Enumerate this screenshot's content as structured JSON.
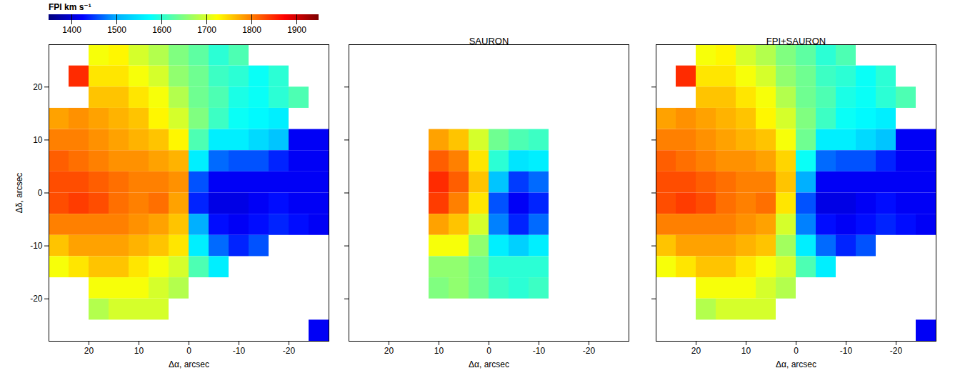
{
  "chart_data": [
    {
      "type": "heatmap",
      "xlabel": "Δα, arcsec",
      "ylabel": "Δδ, arcsec",
      "xlim": [
        28,
        -28
      ],
      "ylim": [
        -28,
        28
      ],
      "xticks": [
        20,
        10,
        0,
        -10,
        -20
      ],
      "yticks": [
        -20,
        -10,
        0,
        10,
        20
      ],
      "tick_labels": true,
      "colorbar": {
        "label": "FPI km s⁻¹",
        "range": [
          1350,
          1950
        ],
        "ticks": [
          1400,
          1500,
          1600,
          1700,
          1800,
          1900
        ]
      },
      "cell_width": 4,
      "x": [
        26,
        22,
        18,
        14,
        10,
        6,
        2,
        -2,
        -6,
        -10,
        -14,
        -18,
        -22,
        -26
      ],
      "y": [
        26,
        22,
        18,
        14,
        10,
        6,
        2,
        -2,
        -6,
        -10,
        -14,
        -18,
        -22,
        -26
      ],
      "values": [
        [
          null,
          null,
          1720,
          1730,
          1700,
          1680,
          1650,
          1630,
          1600,
          1620,
          null,
          null,
          null,
          null
        ],
        [
          null,
          1850,
          1740,
          1740,
          1720,
          1700,
          1660,
          1640,
          1610,
          1600,
          1580,
          1600,
          null,
          null
        ],
        [
          null,
          null,
          1760,
          1760,
          1740,
          1720,
          1680,
          1640,
          1620,
          1590,
          1580,
          1600,
          1620,
          null
        ],
        [
          1780,
          1790,
          1780,
          1770,
          1760,
          1730,
          1700,
          1650,
          1610,
          1580,
          1570,
          1560,
          null,
          null
        ],
        [
          1800,
          1800,
          1790,
          1780,
          1770,
          1760,
          1730,
          1620,
          1560,
          1560,
          1540,
          1520,
          1420,
          1420
        ],
        [
          1820,
          1810,
          1800,
          1790,
          1790,
          1780,
          1770,
          1560,
          1470,
          1460,
          1460,
          1440,
          1420,
          1420
        ],
        [
          1830,
          1830,
          1820,
          1810,
          1800,
          1800,
          1790,
          1460,
          1420,
          1420,
          1420,
          1420,
          1420,
          1420
        ],
        [
          1830,
          1840,
          1830,
          1810,
          1800,
          1810,
          1780,
          1440,
          1410,
          1410,
          1420,
          1430,
          1420,
          1420
        ],
        [
          1800,
          1800,
          1800,
          1800,
          1790,
          1780,
          1760,
          1500,
          1430,
          1420,
          1430,
          1440,
          1430,
          1420
        ],
        [
          1760,
          1780,
          1780,
          1780,
          1770,
          1760,
          1740,
          1560,
          1470,
          1440,
          1460,
          null,
          null,
          null
        ],
        [
          1720,
          1740,
          1760,
          1760,
          1740,
          1720,
          1700,
          1620,
          1560,
          null,
          null,
          null,
          null,
          null
        ],
        [
          null,
          null,
          1720,
          1720,
          1720,
          1700,
          1680,
          null,
          null,
          null,
          null,
          null,
          null,
          null
        ],
        [
          null,
          null,
          1680,
          1700,
          1700,
          1700,
          null,
          null,
          null,
          null,
          null,
          null,
          null,
          null
        ],
        [
          null,
          null,
          null,
          null,
          null,
          null,
          null,
          null,
          null,
          null,
          null,
          null,
          null,
          1420
        ]
      ]
    },
    {
      "type": "heatmap",
      "title": "SAURON",
      "xlabel": "Δα, arcsec",
      "xlim": [
        28,
        -28
      ],
      "ylim": [
        -28,
        28
      ],
      "xticks": [
        20,
        10,
        0,
        -10,
        -20
      ],
      "yticks": [
        -20,
        -10,
        0,
        10,
        20
      ],
      "tick_labels": "x",
      "cell_width": 4,
      "x": [
        26,
        22,
        18,
        14,
        10,
        6,
        2,
        -2,
        -6,
        -10,
        -14,
        -18,
        -22,
        -26
      ],
      "y": [
        26,
        22,
        18,
        14,
        10,
        6,
        2,
        -2,
        -6,
        -10,
        -14,
        -18,
        -22,
        -26
      ],
      "values": [
        [
          null,
          null,
          null,
          null,
          null,
          null,
          null,
          null,
          null,
          null,
          null,
          null,
          null,
          null
        ],
        [
          null,
          null,
          null,
          null,
          null,
          null,
          null,
          null,
          null,
          null,
          null,
          null,
          null,
          null
        ],
        [
          null,
          null,
          null,
          null,
          null,
          null,
          null,
          null,
          null,
          null,
          null,
          null,
          null,
          null
        ],
        [
          null,
          null,
          null,
          null,
          null,
          null,
          null,
          null,
          null,
          null,
          null,
          null,
          null,
          null
        ],
        [
          null,
          null,
          null,
          null,
          1780,
          1760,
          1700,
          1640,
          1620,
          1610,
          null,
          null,
          null,
          null
        ],
        [
          null,
          null,
          null,
          null,
          1820,
          1800,
          1740,
          1600,
          1550,
          1560,
          null,
          null,
          null,
          null
        ],
        [
          null,
          null,
          null,
          null,
          1850,
          1820,
          1760,
          1520,
          1450,
          1470,
          null,
          null,
          null,
          null
        ],
        [
          null,
          null,
          null,
          null,
          1840,
          1800,
          1740,
          1460,
          1420,
          1440,
          null,
          null,
          null,
          null
        ],
        [
          null,
          null,
          null,
          null,
          1780,
          1760,
          1700,
          1480,
          1440,
          1470,
          null,
          null,
          null,
          null
        ],
        [
          null,
          null,
          null,
          null,
          1720,
          1720,
          1660,
          1560,
          1530,
          1560,
          null,
          null,
          null,
          null
        ],
        [
          null,
          null,
          null,
          null,
          1660,
          1660,
          1640,
          1600,
          1600,
          1600,
          null,
          null,
          null,
          null
        ],
        [
          null,
          null,
          null,
          null,
          1650,
          1660,
          1640,
          1610,
          1600,
          1610,
          null,
          null,
          null,
          null
        ],
        [
          null,
          null,
          null,
          null,
          null,
          null,
          null,
          null,
          null,
          null,
          null,
          null,
          null,
          null
        ],
        [
          null,
          null,
          null,
          null,
          null,
          null,
          null,
          null,
          null,
          null,
          null,
          null,
          null,
          null
        ]
      ]
    },
    {
      "type": "heatmap",
      "title": "FPI+SAURON",
      "xlabel": "Δα, arcsec",
      "xlim": [
        28,
        -28
      ],
      "ylim": [
        -28,
        28
      ],
      "xticks": [
        20,
        10,
        0,
        -10,
        -20
      ],
      "yticks": [
        -20,
        -10,
        0,
        10,
        20
      ],
      "tick_labels": "x",
      "cell_width": 4,
      "x": [
        26,
        22,
        18,
        14,
        10,
        6,
        2,
        -2,
        -6,
        -10,
        -14,
        -18,
        -22,
        -26
      ],
      "y": [
        26,
        22,
        18,
        14,
        10,
        6,
        2,
        -2,
        -6,
        -10,
        -14,
        -18,
        -22,
        -26
      ],
      "values": [
        [
          null,
          null,
          1720,
          1730,
          1700,
          1680,
          1650,
          1630,
          1600,
          1620,
          null,
          null,
          null,
          null
        ],
        [
          null,
          1850,
          1740,
          1740,
          1720,
          1700,
          1660,
          1640,
          1610,
          1600,
          1580,
          1600,
          null,
          null
        ],
        [
          null,
          null,
          1760,
          1760,
          1740,
          1720,
          1680,
          1640,
          1620,
          1590,
          1580,
          1600,
          1620,
          null
        ],
        [
          1780,
          1790,
          1780,
          1770,
          1760,
          1730,
          1700,
          1650,
          1610,
          1580,
          1570,
          1560,
          null,
          null
        ],
        [
          1800,
          1800,
          1790,
          1780,
          1770,
          1760,
          1720,
          1640,
          1560,
          1560,
          1540,
          1520,
          1420,
          1420
        ],
        [
          1820,
          1810,
          1800,
          1790,
          1790,
          1780,
          1750,
          1580,
          1470,
          1460,
          1460,
          1440,
          1420,
          1420
        ],
        [
          1830,
          1830,
          1820,
          1810,
          1800,
          1800,
          1760,
          1500,
          1420,
          1420,
          1420,
          1420,
          1420,
          1420
        ],
        [
          1830,
          1840,
          1830,
          1810,
          1800,
          1810,
          1740,
          1460,
          1410,
          1410,
          1420,
          1430,
          1420,
          1420
        ],
        [
          1800,
          1800,
          1800,
          1800,
          1790,
          1780,
          1700,
          1480,
          1430,
          1420,
          1430,
          1440,
          1430,
          1420
        ],
        [
          1760,
          1780,
          1780,
          1780,
          1770,
          1760,
          1670,
          1560,
          1470,
          1440,
          1460,
          null,
          null,
          null
        ],
        [
          1720,
          1740,
          1760,
          1760,
          1740,
          1720,
          1700,
          1620,
          1560,
          null,
          null,
          null,
          null,
          null
        ],
        [
          null,
          null,
          1720,
          1720,
          1720,
          1700,
          1680,
          null,
          null,
          null,
          null,
          null,
          null,
          null
        ],
        [
          null,
          null,
          1680,
          1700,
          1700,
          1700,
          null,
          null,
          null,
          null,
          null,
          null,
          null,
          null
        ],
        [
          null,
          null,
          null,
          null,
          null,
          null,
          null,
          null,
          null,
          null,
          null,
          null,
          null,
          1420
        ]
      ]
    }
  ]
}
